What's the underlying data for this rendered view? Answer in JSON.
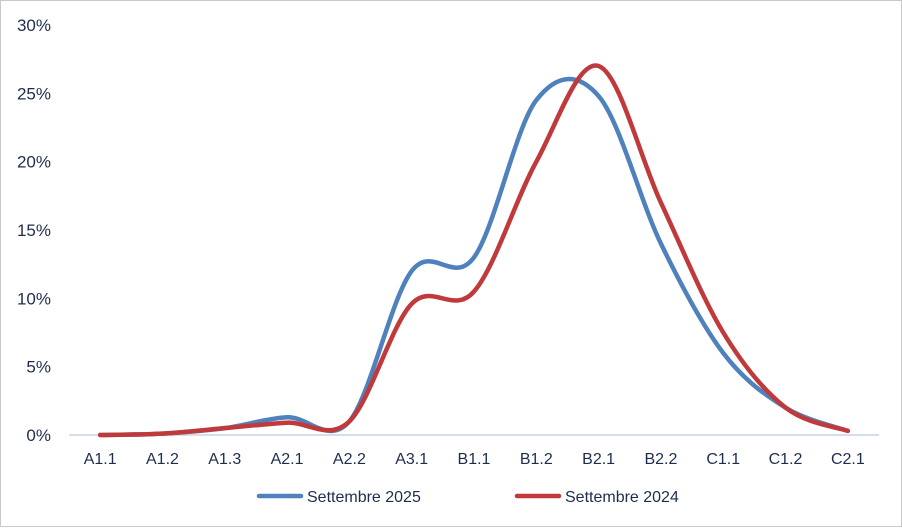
{
  "chart_data": {
    "type": "line",
    "title": "",
    "xlabel": "",
    "ylabel": "",
    "categories": [
      "A1.1",
      "A1.2",
      "A1.3",
      "A2.1",
      "A2.2",
      "A3.1",
      "B1.1",
      "B1.2",
      "B2.1",
      "B2.2",
      "C1.1",
      "C1.2",
      "C2.1"
    ],
    "y_tick_labels": [
      "0%",
      "5%",
      "10%",
      "15%",
      "20%",
      "25%",
      "30%"
    ],
    "ylim": [
      0,
      30
    ],
    "y_unit": "%",
    "grid": false,
    "legend_position": "bottom",
    "series": [
      {
        "name": "Settembre 2025",
        "color": "#4f81bd",
        "values": [
          0.0,
          0.1,
          0.5,
          1.3,
          1.0,
          12.0,
          13.0,
          24.5,
          24.8,
          14.0,
          6.0,
          2.0,
          0.3
        ]
      },
      {
        "name": "Settembre 2024",
        "color": "#c0393b",
        "values": [
          0.0,
          0.1,
          0.5,
          0.9,
          1.0,
          9.6,
          10.5,
          20.0,
          27.0,
          17.0,
          7.5,
          2.0,
          0.3
        ]
      }
    ]
  }
}
